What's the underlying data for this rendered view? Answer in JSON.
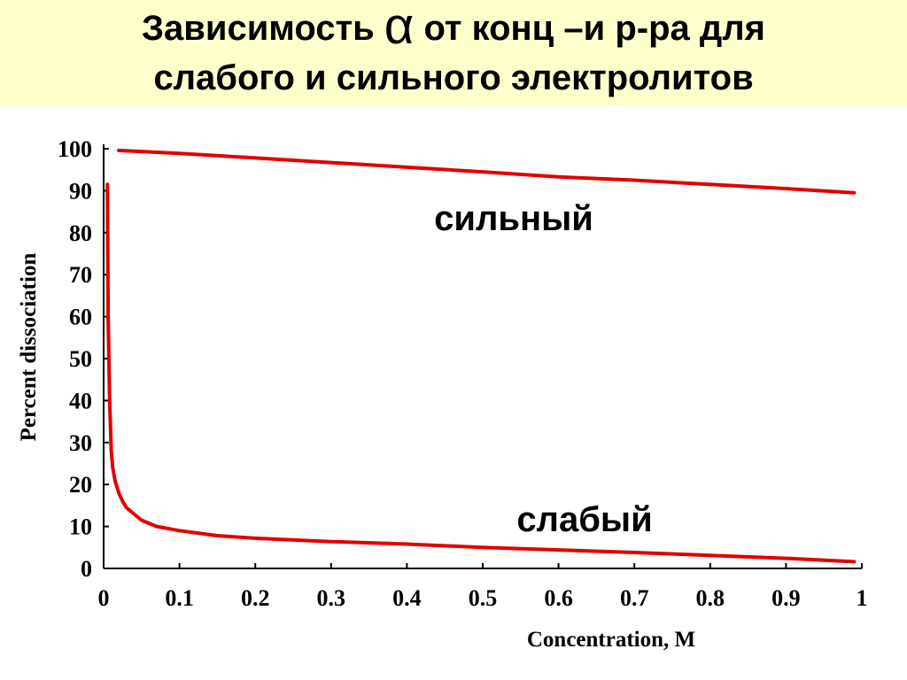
{
  "slide": {
    "title_line1_prefix": "Зависимость ",
    "alpha_symbol": "α",
    "title_line1_suffix": "  от  конц –и р-ра для",
    "title_line2": "слабого и сильного электролитов",
    "title_band_color": "#ffffcc"
  },
  "chart_data": {
    "type": "line",
    "xlabel": "Concentration, M",
    "ylabel": "Percent dissociation",
    "xlim": [
      0,
      1
    ],
    "ylim": [
      0,
      100
    ],
    "x_ticks": [
      "0",
      "0.1",
      "0.2",
      "0.3",
      "0.4",
      "0.5",
      "0.6",
      "0.7",
      "0.8",
      "0.9",
      "1"
    ],
    "y_ticks": [
      "0",
      "10",
      "20",
      "30",
      "40",
      "50",
      "60",
      "70",
      "80",
      "90",
      "100"
    ],
    "grid": false,
    "line_color": "#e00000",
    "series": [
      {
        "name": "сильный",
        "x": [
          0.02,
          0.1,
          0.2,
          0.3,
          0.4,
          0.5,
          0.6,
          0.7,
          0.8,
          0.9,
          0.99
        ],
        "y": [
          99.6,
          98.9,
          97.8,
          96.7,
          95.6,
          94.5,
          93.3,
          92.5,
          91.5,
          90.5,
          89.5
        ]
      },
      {
        "name": "слабый",
        "x": [
          0.005,
          0.006,
          0.008,
          0.01,
          0.012,
          0.015,
          0.02,
          0.025,
          0.03,
          0.04,
          0.05,
          0.07,
          0.1,
          0.15,
          0.2,
          0.3,
          0.4,
          0.5,
          0.6,
          0.7,
          0.8,
          0.9,
          0.99
        ],
        "y": [
          91.5,
          60,
          40,
          28,
          24,
          21,
          18,
          16,
          14.5,
          13,
          11.5,
          10,
          9,
          7.8,
          7.2,
          6.4,
          5.8,
          5.0,
          4.4,
          3.8,
          3.1,
          2.4,
          1.6
        ]
      }
    ]
  }
}
